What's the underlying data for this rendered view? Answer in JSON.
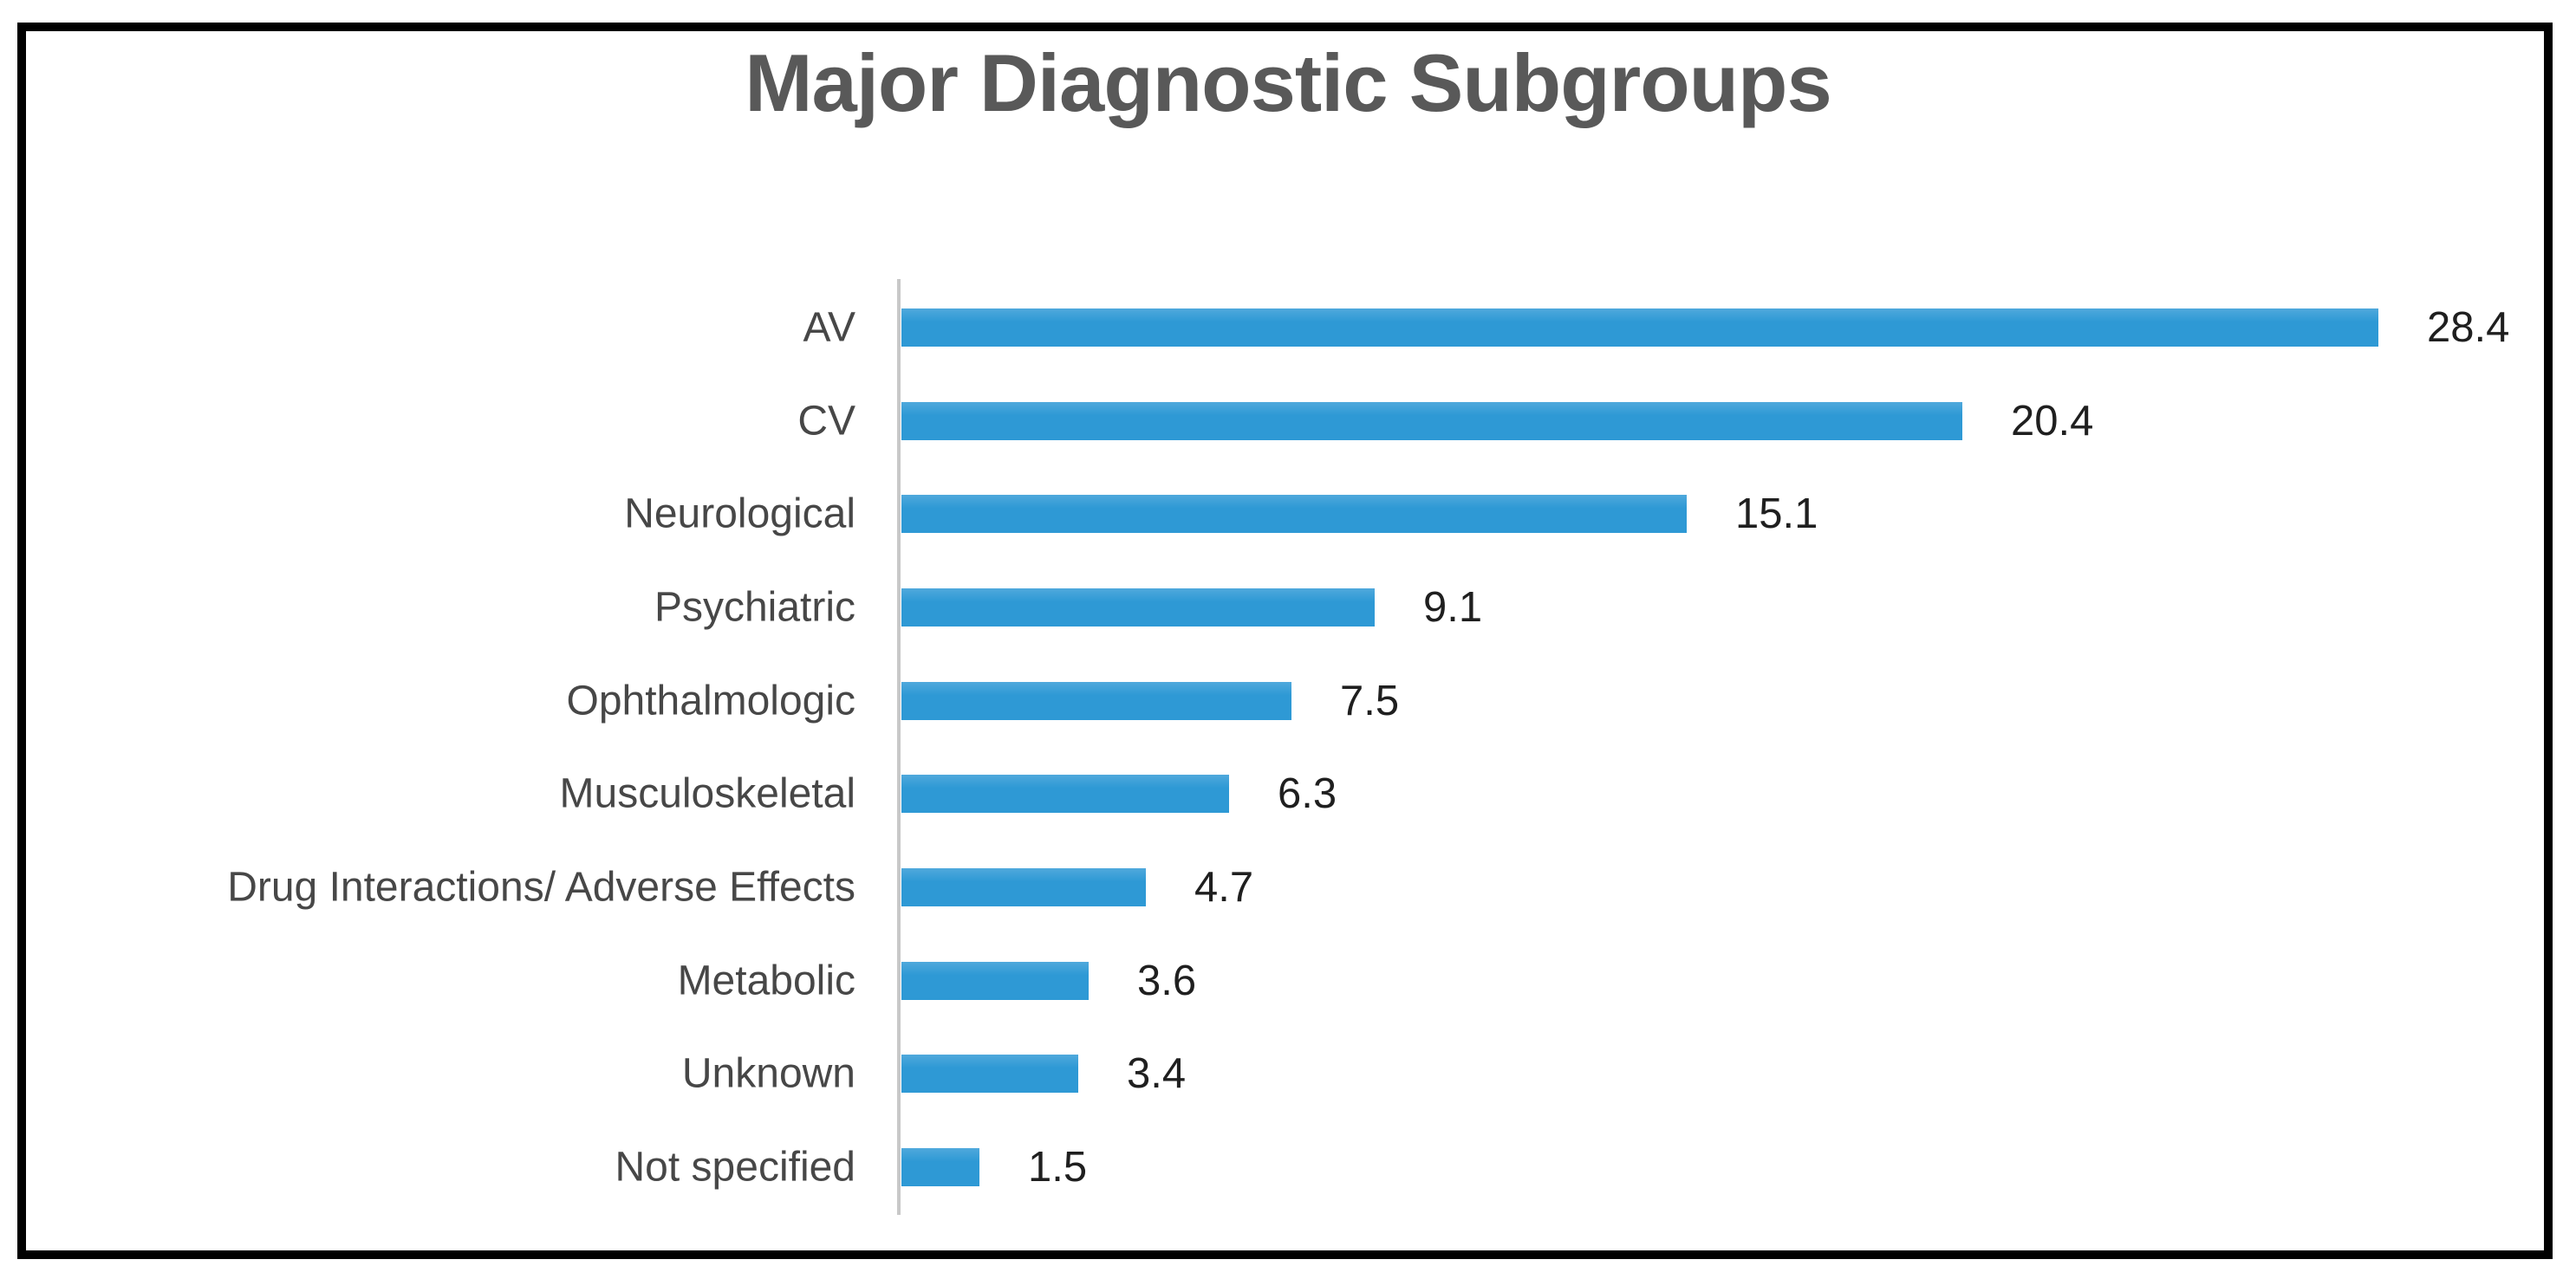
{
  "figure": {
    "background_color": "#ffffff",
    "frame_border_color": "#000000"
  },
  "chart_data": {
    "type": "bar",
    "orientation": "horizontal",
    "title": "Major Diagnostic Subgroups",
    "categories": [
      "AV",
      "CV",
      "Neurological",
      "Psychiatric",
      "Ophthalmologic",
      "Musculoskeletal",
      "Drug Interactions/ Adverse Effects",
      "Metabolic",
      "Unknown",
      "Not specified"
    ],
    "values": [
      28.4,
      20.4,
      15.1,
      9.1,
      7.5,
      6.3,
      4.7,
      3.6,
      3.4,
      1.5
    ],
    "value_labels": [
      "28.4",
      "20.4",
      "15.1",
      "9.1",
      "7.5",
      "6.3",
      "4.7",
      "3.6",
      "3.4",
      "1.5"
    ],
    "xlabel": "",
    "ylabel": "",
    "xlim": [
      0,
      30
    ],
    "grid": false,
    "legend": false,
    "data_labels_position": "outside-end",
    "colors": {
      "bar": "#2e99d5",
      "bar_top_highlight": "#4fa9dc",
      "axis_line": "#c8c8c8",
      "title_text": "#595959",
      "category_text": "#474747",
      "value_text": "#1f1f1f"
    }
  }
}
